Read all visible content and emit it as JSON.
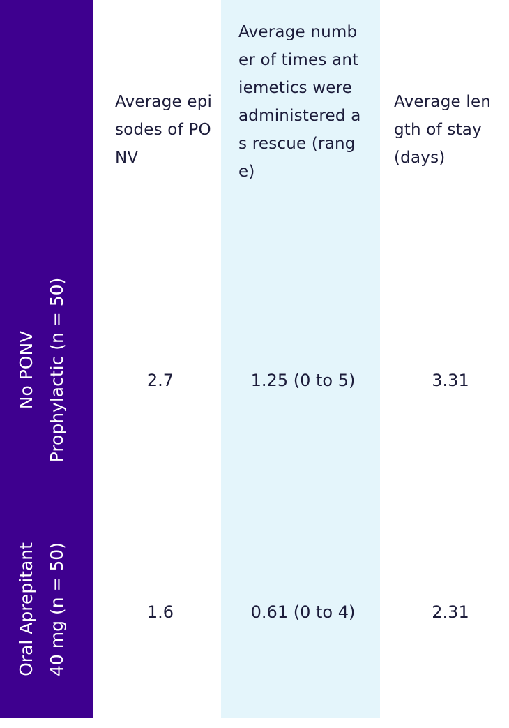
{
  "chart_data": {
    "type": "table",
    "columns": [
      "Average episodes of PONV",
      "Average number of times antiemetics were administered as rescue (range)",
      "Average length of stay (days)"
    ],
    "rows": [
      {
        "label_lines": [
          "No PONV",
          "Prophylactic (n = 50)"
        ],
        "values": [
          "2.7",
          "1.25 (0 to 5)",
          "3.31"
        ]
      },
      {
        "label_lines": [
          "Oral Aprepitant",
          "40 mg (n = 50)"
        ],
        "values": [
          "1.6",
          "0.61 (0 to 4)",
          "2.31"
        ]
      }
    ],
    "colors": {
      "row_header_band": "#3e008f",
      "highlight_column": "#e4f5fb",
      "text": "#1c1c3a",
      "row_header_text": "#ffffff"
    }
  }
}
